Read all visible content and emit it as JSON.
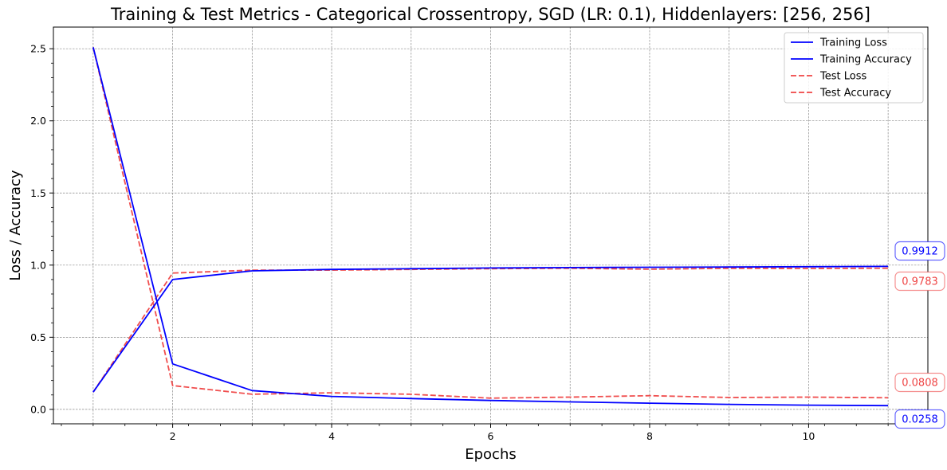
{
  "chart_data": {
    "type": "line",
    "title": "Training & Test Metrics - Categorical Crossentropy, SGD (LR: 0.1), Hiddenlayers: [256, 256]",
    "xlabel": "Epochs",
    "ylabel": "Loss / Accuracy",
    "x": [
      1,
      2,
      3,
      4,
      5,
      6,
      7,
      8,
      9,
      10,
      11
    ],
    "xlim": [
      0.5,
      11.5
    ],
    "ylim": [
      -0.1,
      2.65
    ],
    "xticks": [
      2,
      4,
      6,
      8,
      10
    ],
    "yticks": [
      0.0,
      0.5,
      1.0,
      1.5,
      2.0,
      2.5
    ],
    "xtick_labels": [
      "2",
      "4",
      "6",
      "8",
      "10"
    ],
    "ytick_labels": [
      "0.0",
      "0.5",
      "1.0",
      "1.5",
      "2.0",
      "2.5"
    ],
    "grid": true,
    "legend_position": "top-right",
    "series": [
      {
        "name": "Training Loss",
        "color": "#0000ff",
        "style": "solid",
        "values": [
          2.51,
          0.315,
          0.13,
          0.09,
          0.075,
          0.062,
          0.052,
          0.043,
          0.035,
          0.029,
          0.0258
        ]
      },
      {
        "name": "Training Accuracy",
        "color": "#0000ff",
        "style": "solid",
        "values": [
          0.12,
          0.9,
          0.96,
          0.97,
          0.975,
          0.98,
          0.983,
          0.985,
          0.987,
          0.989,
          0.9912
        ]
      },
      {
        "name": "Test Loss",
        "color": "#ef4444",
        "style": "dashed",
        "values": [
          2.51,
          0.165,
          0.105,
          0.115,
          0.105,
          0.078,
          0.085,
          0.095,
          0.082,
          0.085,
          0.0808
        ]
      },
      {
        "name": "Test Accuracy",
        "color": "#ef4444",
        "style": "dashed",
        "values": [
          0.12,
          0.945,
          0.965,
          0.965,
          0.97,
          0.975,
          0.978,
          0.972,
          0.978,
          0.977,
          0.9783
        ]
      }
    ],
    "annotations": [
      {
        "text": "0.9912",
        "color": "#0000ff"
      },
      {
        "text": "0.9783",
        "color": "#ef4444"
      },
      {
        "text": "0.0808",
        "color": "#ef4444"
      },
      {
        "text": "0.0258",
        "color": "#0000ff"
      }
    ]
  }
}
